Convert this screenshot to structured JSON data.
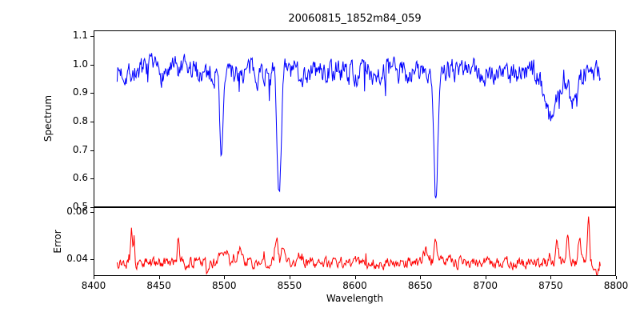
{
  "title": "20060815_1852m84_059",
  "axes": {
    "xlabel": "Wavelength",
    "spectrum_ylabel": "Spectrum",
    "error_ylabel": "Error"
  },
  "x_tick_labels": [
    "8400",
    "8450",
    "8500",
    "8550",
    "8600",
    "8650",
    "8700",
    "8750",
    "8800"
  ],
  "chart_data": [
    {
      "type": "line",
      "name": "spectrum",
      "color": "#0000ff",
      "xlim": [
        8400,
        8800
      ],
      "ylim": [
        0.5,
        1.12
      ],
      "x_start": 8418,
      "x_end": 8788,
      "x_step": 0.5,
      "ytick_labels": [
        "1.1",
        "1.0",
        "0.9",
        "0.8",
        "0.7",
        "0.6",
        "0.5"
      ],
      "baseline": 0.975,
      "noise_amp": 0.08,
      "noise_corr": 0.55,
      "outlier_prob": 0.02,
      "outlier_amp": 0.1,
      "seed": 7,
      "absorption_lines": [
        {
          "center": 8498,
          "depth": 0.3,
          "sigma": 1.3
        },
        {
          "center": 8542,
          "depth": 0.44,
          "sigma": 1.5
        },
        {
          "center": 8662,
          "depth": 0.47,
          "sigma": 1.5
        },
        {
          "center": 8750,
          "depth": 0.17,
          "sigma": 4
        },
        {
          "center": 8767,
          "depth": 0.12,
          "sigma": 3
        }
      ]
    },
    {
      "type": "line",
      "name": "error",
      "color": "#ff0000",
      "xlim": [
        8400,
        8800
      ],
      "ylim": [
        0.033,
        0.062
      ],
      "x_start": 8418,
      "x_end": 8788,
      "x_step": 0.5,
      "ytick_labels": [
        "0.06",
        "0.04"
      ],
      "baseline": 0.0385,
      "noise_amp": 0.004,
      "noise_corr": 0.5,
      "outlier_prob": 0.02,
      "outlier_amp": -0.004,
      "seed": 13,
      "spikes": [
        {
          "center": 8429,
          "amp": 0.014,
          "sigma": 0.8
        },
        {
          "center": 8431,
          "amp": 0.01,
          "sigma": 0.6
        },
        {
          "center": 8465,
          "amp": 0.0095,
          "sigma": 0.8
        },
        {
          "center": 8487,
          "amp": -0.005,
          "sigma": 0.7
        },
        {
          "center": 8500,
          "amp": 0.005,
          "sigma": 2.5
        },
        {
          "center": 8512,
          "amp": 0.0065,
          "sigma": 1.2
        },
        {
          "center": 8520,
          "amp": 0.004,
          "sigma": 1.0
        },
        {
          "center": 8540,
          "amp": 0.011,
          "sigma": 1.2
        },
        {
          "center": 8545,
          "amp": 0.006,
          "sigma": 1.0
        },
        {
          "center": 8558,
          "amp": 0.004,
          "sigma": 1.5
        },
        {
          "center": 8600,
          "amp": 0.002,
          "sigma": 2.0
        },
        {
          "center": 8655,
          "amp": 0.006,
          "sigma": 2.0
        },
        {
          "center": 8662,
          "amp": 0.009,
          "sigma": 1.2
        },
        {
          "center": 8672,
          "amp": 0.004,
          "sigma": 1.2
        },
        {
          "center": 8700,
          "amp": 0.002,
          "sigma": 1.5
        },
        {
          "center": 8755,
          "amp": 0.008,
          "sigma": 1.2
        },
        {
          "center": 8763,
          "amp": 0.013,
          "sigma": 1.0
        },
        {
          "center": 8772,
          "amp": 0.01,
          "sigma": 1.0
        },
        {
          "center": 8779,
          "amp": 0.021,
          "sigma": 0.7
        },
        {
          "center": 8786,
          "amp": -0.004,
          "sigma": 0.8
        }
      ]
    }
  ]
}
